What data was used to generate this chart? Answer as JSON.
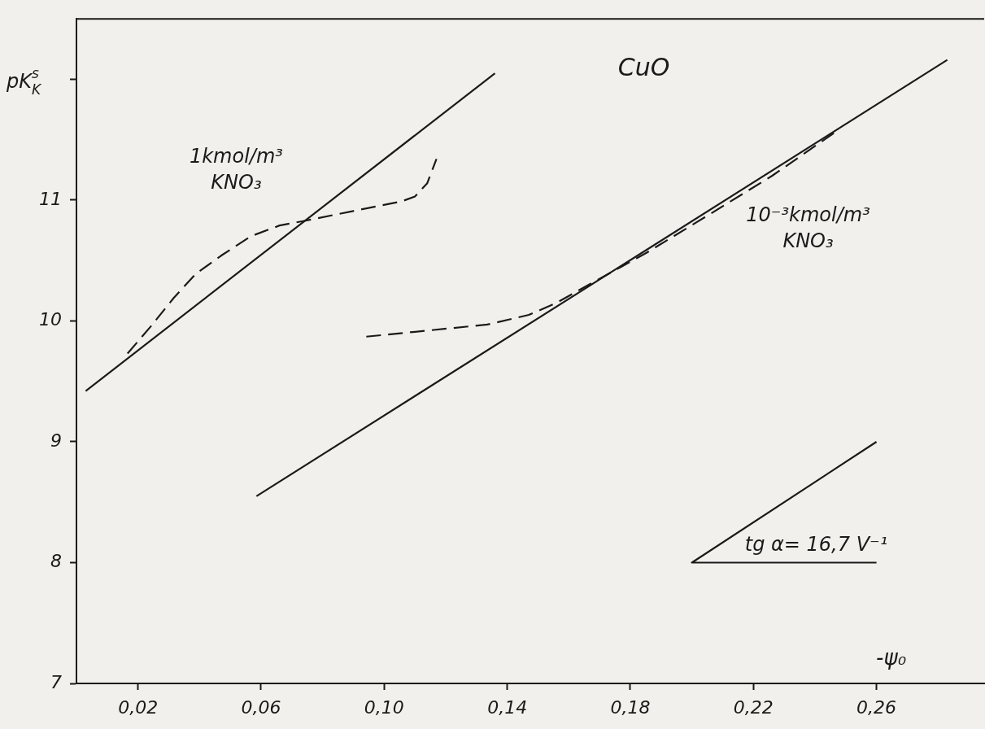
{
  "chart_data": {
    "type": "line",
    "title": "CuO",
    "xlabel": "-ψ₀",
    "ylabel": "pK$_{K}$$^{s}$",
    "xlim": [
      0,
      0.295
    ],
    "ylim": [
      7,
      12.5
    ],
    "xticks": [
      {
        "value": 0.02,
        "label": "0,02"
      },
      {
        "value": 0.06,
        "label": "0,06"
      },
      {
        "value": 0.1,
        "label": "0,10"
      },
      {
        "value": 0.14,
        "label": "0,14"
      },
      {
        "value": 0.18,
        "label": "0,18"
      },
      {
        "value": 0.22,
        "label": "0,22"
      },
      {
        "value": 0.26,
        "label": "0,26"
      }
    ],
    "yticks": [
      7,
      8,
      9,
      10,
      11,
      {
        "value": 12,
        "label": null
      }
    ],
    "grid": false,
    "legend": false,
    "marker": "none",
    "series": [
      {
        "color": "#1a1a1a",
        "line_style": "solid",
        "x": [
          0.003,
          0.136
        ],
        "values": [
          9.42,
          12.05
        ]
      },
      {
        "color": "#1a1a1a",
        "line_style": "dashed",
        "x": [
          0.0166,
          0.024,
          0.0316,
          0.0388,
          0.047,
          0.0566,
          0.066,
          0.0744,
          0.09,
          0.1057,
          0.11,
          0.114,
          0.117
        ],
        "values": [
          9.73,
          9.95,
          10.19,
          10.39,
          10.54,
          10.7,
          10.79,
          10.83,
          10.91,
          10.99,
          11.03,
          11.14,
          11.34
        ]
      },
      {
        "color": "#1a1a1a",
        "line_style": "solid",
        "x": [
          0.0585,
          0.283
        ],
        "values": [
          8.55,
          12.16
        ]
      },
      {
        "color": "#1a1a1a",
        "line_style": "dashed",
        "x": [
          0.0942,
          0.1335,
          0.147,
          0.156,
          0.1665,
          0.185,
          0.2056,
          0.226,
          0.247
        ],
        "values": [
          9.87,
          9.97,
          10.05,
          10.15,
          10.3,
          10.56,
          10.88,
          11.2,
          11.57
        ]
      },
      {
        "color": "#1a1a1a",
        "line_style": "solid",
        "x": [
          0.26,
          0.2,
          0.26
        ],
        "values": [
          9.0,
          8.0,
          8.0
        ]
      }
    ],
    "annotations": [
      "1kmol/m³\nKNO₃",
      "10⁻³kmol/m³\nKNO₃",
      "tg α= 16,7 V⁻¹"
    ]
  }
}
